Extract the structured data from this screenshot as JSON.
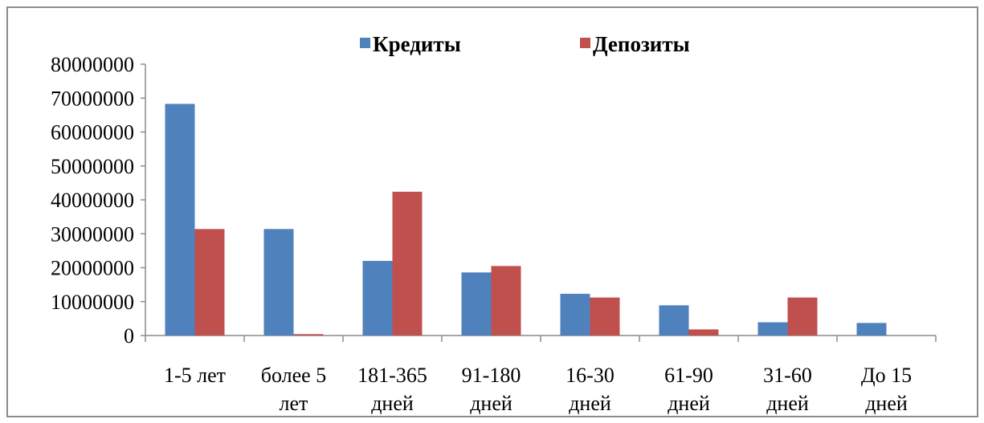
{
  "chart_data": {
    "type": "bar",
    "categories": [
      [
        "1-5 лет"
      ],
      [
        "более 5",
        "лет"
      ],
      [
        "181-365",
        "дней"
      ],
      [
        "91-180",
        "дней"
      ],
      [
        "16-30",
        "дней"
      ],
      [
        "61-90",
        "дней"
      ],
      [
        "31-60",
        "дней"
      ],
      [
        "До 15",
        "дней"
      ]
    ],
    "series": [
      {
        "name": "Кредиты",
        "color": "#4f81bd",
        "values": [
          68300000,
          31400000,
          22000000,
          18600000,
          12300000,
          8900000,
          3900000,
          3700000
        ]
      },
      {
        "name": "Депозиты",
        "color": "#c0504d",
        "values": [
          31400000,
          400000,
          42400000,
          20500000,
          11200000,
          1800000,
          11200000,
          0
        ]
      }
    ],
    "yticks": [
      "0",
      "10000000",
      "20000000",
      "30000000",
      "40000000",
      "50000000",
      "60000000",
      "70000000",
      "80000000"
    ],
    "ylim": [
      0,
      80000000
    ],
    "legend_position": "top",
    "grid": false
  }
}
